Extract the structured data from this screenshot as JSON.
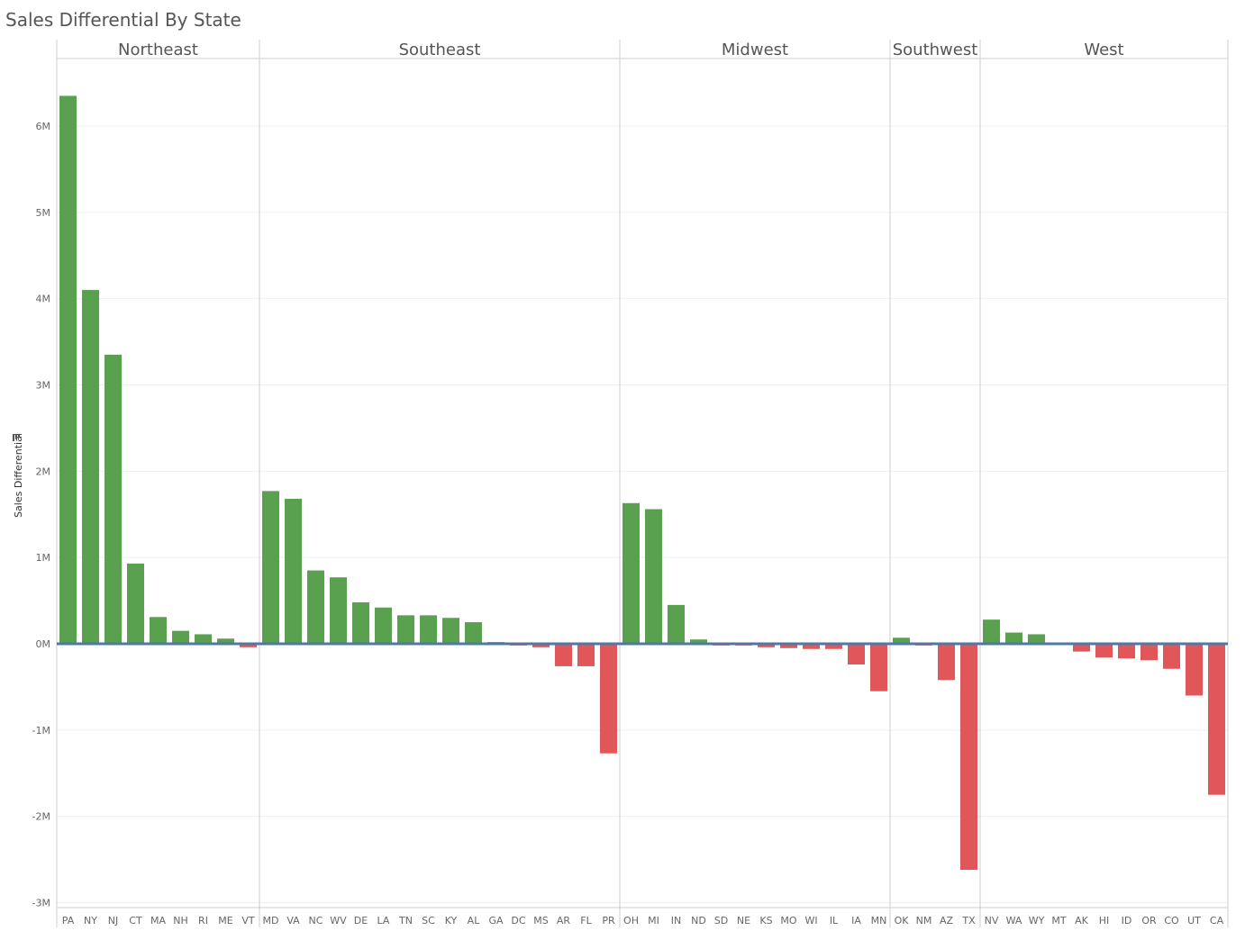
{
  "title": "Sales Differential By State",
  "colors": {
    "positive": "#59A14F",
    "negative": "#E15759",
    "zero_line": "#4E79A7",
    "grid": "#EFEFEF",
    "divider": "#CFCFCF"
  },
  "chart_data": {
    "type": "bar",
    "title": "Sales Differential By State",
    "ylabel": "Sales Differential",
    "xlabel": "",
    "ylim": [
      -3000000,
      6000000
    ],
    "yticks": [
      {
        "value": 6000000,
        "label": "6M"
      },
      {
        "value": 5000000,
        "label": "5M"
      },
      {
        "value": 4000000,
        "label": "4M"
      },
      {
        "value": 3000000,
        "label": "3M"
      },
      {
        "value": 2000000,
        "label": "2M"
      },
      {
        "value": 1000000,
        "label": "1M"
      },
      {
        "value": 0,
        "label": "0M"
      },
      {
        "value": -1000000,
        "label": "-1M"
      },
      {
        "value": -2000000,
        "label": "-2M"
      },
      {
        "value": -3000000,
        "label": "-3M"
      }
    ],
    "grid": true,
    "regions": [
      {
        "name": "Northeast",
        "categories": [
          "PA",
          "NY",
          "NJ",
          "CT",
          "MA",
          "NH",
          "RI",
          "ME",
          "VT"
        ],
        "values": [
          6350000,
          4100000,
          3350000,
          930000,
          310000,
          150000,
          110000,
          60000,
          -40000
        ]
      },
      {
        "name": "Southeast",
        "categories": [
          "MD",
          "VA",
          "NC",
          "WV",
          "DE",
          "LA",
          "TN",
          "SC",
          "KY",
          "AL",
          "GA",
          "DC",
          "MS",
          "AR",
          "FL",
          "PR"
        ],
        "values": [
          1770000,
          1680000,
          850000,
          770000,
          480000,
          420000,
          330000,
          330000,
          300000,
          250000,
          20000,
          -20000,
          -40000,
          -260000,
          -260000,
          -1270000
        ]
      },
      {
        "name": "Midwest",
        "categories": [
          "OH",
          "MI",
          "IN",
          "ND",
          "SD",
          "NE",
          "KS",
          "MO",
          "WI",
          "IL",
          "IA",
          "MN"
        ],
        "values": [
          1630000,
          1560000,
          450000,
          50000,
          -20000,
          -20000,
          -40000,
          -50000,
          -60000,
          -60000,
          -240000,
          -550000
        ]
      },
      {
        "name": "Southwest",
        "categories": [
          "OK",
          "NM",
          "AZ",
          "TX"
        ],
        "values": [
          70000,
          -20000,
          -420000,
          -2620000
        ]
      },
      {
        "name": "West",
        "categories": [
          "NV",
          "WA",
          "WY",
          "MT",
          "AK",
          "HI",
          "ID",
          "OR",
          "CO",
          "UT",
          "CA"
        ],
        "values": [
          280000,
          130000,
          110000,
          10000,
          -90000,
          -160000,
          -170000,
          -190000,
          -290000,
          -600000,
          -1750000
        ]
      }
    ]
  }
}
